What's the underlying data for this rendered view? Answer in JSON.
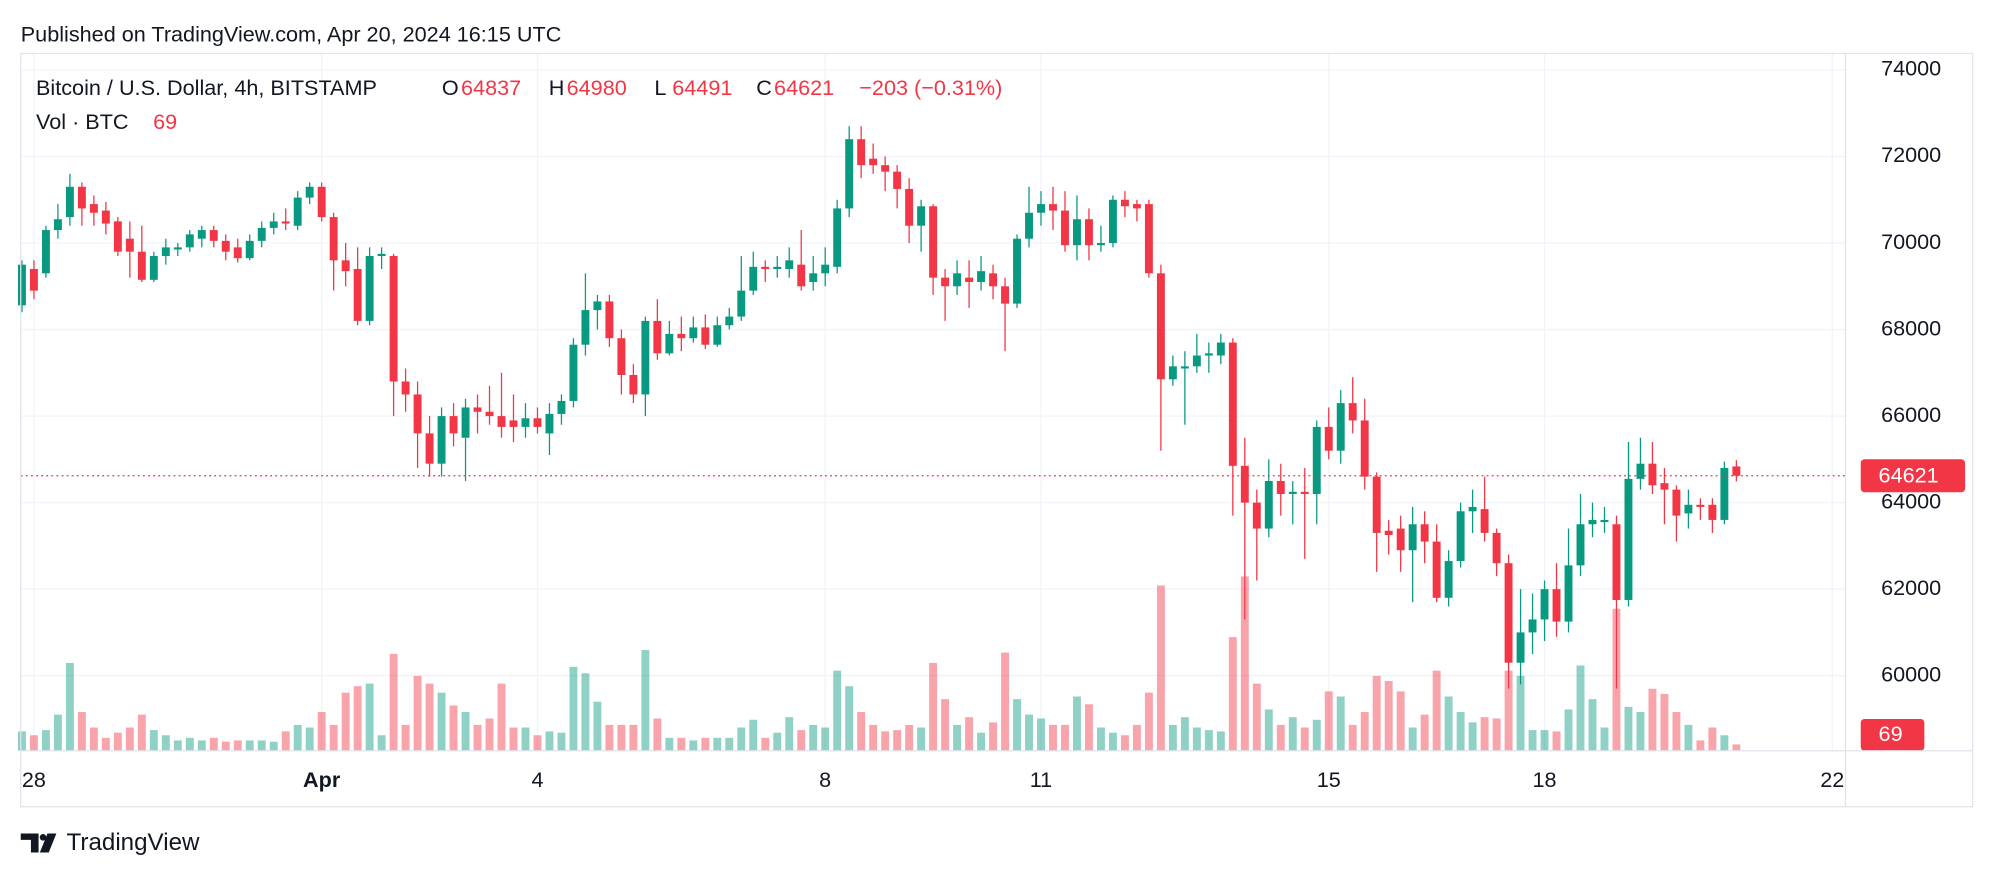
{
  "header": "Published on TradingView.com, Apr 20, 2024 16:15 UTC",
  "footer": "TradingView",
  "chart_data": {
    "type": "candlestick",
    "title": "Bitcoin / U.S. Dollar, 4h, BITSTAMP",
    "ohlc_labels": [
      "O",
      "H",
      "L",
      "C"
    ],
    "change": "−203 (−0.31%)",
    "volume_label": "Vol · BTC",
    "up_color": "#089981",
    "down_color": "#f23645",
    "grid": true,
    "xlim": [
      -0.1,
      152.1
    ],
    "xticks": [
      {
        "value": 1,
        "label": "28"
      },
      {
        "value": 25,
        "label": "Apr"
      },
      {
        "value": 43,
        "label": "4"
      },
      {
        "value": 67,
        "label": "8"
      },
      {
        "value": 85,
        "label": "11"
      },
      {
        "value": 109,
        "label": "15"
      },
      {
        "value": 127,
        "label": "18"
      },
      {
        "value": 151,
        "label": "22"
      }
    ],
    "ylim": [
      58265,
      74382
    ],
    "yticks": [
      60000,
      62000,
      64000,
      66000,
      68000,
      70000,
      72000,
      74000
    ],
    "open": [
      68560,
      69400,
      69300,
      70300,
      70600,
      71300,
      70900,
      70750,
      70500,
      70100,
      69800,
      69150,
      69700,
      69850,
      69900,
      70100,
      70300,
      70050,
      69900,
      69650,
      70050,
      70350,
      70500,
      70400,
      71050,
      71300,
      70600,
      69600,
      69400,
      68200,
      69700,
      69700,
      66800,
      66500,
      65600,
      64900,
      66000,
      65500,
      66200,
      66100,
      66000,
      65900,
      65750,
      65950,
      65600,
      66050,
      66350,
      67650,
      68450,
      68650,
      67800,
      66950,
      66500,
      68200,
      67450,
      67900,
      67800,
      68050,
      67650,
      68100,
      68300,
      68900,
      69450,
      69400,
      69400,
      69500,
      69100,
      69300,
      69450,
      70800,
      72400,
      71950,
      71800,
      71650,
      71250,
      70400,
      70850,
      69200,
      69000,
      69200,
      69100,
      69300,
      69000,
      68600,
      70100,
      70700,
      70900,
      70750,
      69950,
      70550,
      69950,
      70000,
      71000,
      70900,
      70900,
      69300,
      66850,
      67100,
      67150,
      67400,
      67400,
      67700,
      64850,
      64000,
      63400,
      64500,
      64200,
      64250,
      64200,
      65750,
      65200,
      66300,
      65900,
      64600,
      63350,
      63400,
      62900,
      63500,
      63100,
      61800,
      62650,
      63800,
      63850,
      63300,
      62600,
      60300,
      61000,
      61300,
      62000,
      61250,
      62550,
      63500,
      63550,
      63500,
      61750,
      64550,
      64900,
      64450,
      64300,
      63750,
      63950,
      63950,
      63600,
      64837
    ],
    "high": [
      69600,
      69600,
      70400,
      70900,
      71600,
      71400,
      71100,
      70950,
      70600,
      70500,
      70400,
      69800,
      70100,
      70000,
      70300,
      70400,
      70400,
      70200,
      70100,
      70200,
      70500,
      70700,
      70800,
      71200,
      71400,
      71400,
      70700,
      70000,
      69900,
      69900,
      69900,
      69750,
      67100,
      66800,
      66000,
      66200,
      66300,
      66400,
      66500,
      66700,
      67000,
      66500,
      66300,
      66200,
      66300,
      66500,
      67800,
      69300,
      68800,
      68800,
      68000,
      67200,
      68300,
      68700,
      68200,
      68300,
      68300,
      68350,
      68300,
      68500,
      69700,
      69800,
      69600,
      69700,
      69900,
      70300,
      69700,
      69900,
      71000,
      72700,
      72700,
      72300,
      72000,
      71800,
      71500,
      71000,
      70900,
      69400,
      69600,
      69600,
      69700,
      69500,
      69200,
      70200,
      71300,
      71200,
      71300,
      71200,
      71100,
      70800,
      70400,
      71100,
      71200,
      71000,
      71000,
      69500,
      67400,
      67500,
      67900,
      67700,
      67900,
      67800,
      65500,
      64300,
      65000,
      64900,
      64500,
      64800,
      65900,
      66200,
      66600,
      66900,
      66400,
      64700,
      63600,
      63700,
      63900,
      63800,
      63500,
      62900,
      64000,
      64300,
      64600,
      63400,
      62800,
      62000,
      61900,
      62200,
      62600,
      63400,
      64200,
      64000,
      63900,
      63700,
      65400,
      65500,
      65400,
      64800,
      64400,
      64300,
      64100,
      64100,
      64950,
      64980
    ],
    "low": [
      68400,
      68700,
      69200,
      70100,
      70400,
      70400,
      70400,
      70200,
      69700,
      69200,
      69100,
      69100,
      69500,
      69700,
      69800,
      69900,
      69900,
      69600,
      69550,
      69600,
      69900,
      70200,
      70300,
      70300,
      70900,
      70500,
      68900,
      69000,
      68100,
      68100,
      69400,
      66000,
      66100,
      64800,
      64600,
      64600,
      65300,
      64500,
      65600,
      65800,
      65500,
      65400,
      65500,
      65600,
      65100,
      65800,
      66200,
      67400,
      68000,
      67600,
      66500,
      66300,
      66000,
      67300,
      67400,
      67500,
      67700,
      67550,
      67600,
      68000,
      68200,
      68800,
      69100,
      69200,
      69200,
      68900,
      68900,
      69000,
      69300,
      70600,
      71500,
      71600,
      71200,
      70800,
      70000,
      69800,
      68800,
      68200,
      68800,
      68500,
      68900,
      68700,
      67500,
      68500,
      69900,
      70400,
      70300,
      69800,
      69600,
      69600,
      69800,
      69900,
      70600,
      70500,
      69200,
      65200,
      66700,
      65800,
      67000,
      67000,
      67200,
      63700,
      61300,
      62200,
      63200,
      63700,
      63500,
      62700,
      63500,
      65000,
      64900,
      65600,
      64300,
      62400,
      62800,
      62400,
      61700,
      62600,
      61700,
      61600,
      62500,
      63300,
      63100,
      62300,
      59700,
      59800,
      60500,
      60800,
      60900,
      61000,
      62300,
      63200,
      63300,
      59700,
      61600,
      64300,
      64200,
      63500,
      63100,
      63400,
      63600,
      63300,
      63500,
      64491
    ],
    "close": [
      69500,
      68900,
      70300,
      70550,
      71300,
      70800,
      70700,
      70450,
      69800,
      69800,
      69150,
      69700,
      69900,
      69900,
      70200,
      70300,
      70050,
      69800,
      69650,
      70050,
      70350,
      70500,
      70450,
      71050,
      71300,
      70600,
      69600,
      69350,
      68200,
      69700,
      69750,
      66800,
      66500,
      65600,
      64900,
      66000,
      65600,
      66200,
      66100,
      66000,
      65750,
      65750,
      65950,
      65750,
      66050,
      66350,
      67650,
      68450,
      68650,
      67800,
      66950,
      66500,
      68200,
      67450,
      67900,
      67800,
      68050,
      67650,
      68100,
      68300,
      68900,
      69450,
      69400,
      69450,
      69600,
      69000,
      69300,
      69500,
      70800,
      72400,
      71800,
      71800,
      71650,
      71250,
      70400,
      70850,
      69200,
      69000,
      69300,
      69100,
      69350,
      69000,
      68600,
      70100,
      70700,
      70900,
      70750,
      69950,
      70550,
      69950,
      70000,
      71000,
      70850,
      70800,
      69300,
      66850,
      67150,
      67150,
      67400,
      67450,
      67700,
      64850,
      64000,
      63400,
      64500,
      64200,
      64250,
      64200,
      65750,
      65200,
      66300,
      65900,
      64600,
      63300,
      63250,
      62900,
      63500,
      63100,
      61800,
      62650,
      63800,
      63900,
      63300,
      62600,
      60300,
      61000,
      61300,
      62000,
      61250,
      62550,
      63500,
      63600,
      63600,
      61750,
      64550,
      64900,
      64400,
      64300,
      63700,
      63950,
      63900,
      63600,
      64800,
      64621
    ],
    "volume": [
      210,
      168,
      224,
      392,
      952,
      420,
      252,
      140,
      196,
      252,
      392,
      224,
      168,
      112,
      140,
      112,
      140,
      98,
      112,
      112,
      112,
      98,
      210,
      280,
      252,
      420,
      280,
      630,
      700,
      728,
      168,
      1050,
      280,
      812,
      728,
      630,
      490,
      420,
      280,
      350,
      728,
      252,
      252,
      168,
      210,
      196,
      910,
      840,
      532,
      280,
      280,
      280,
      1092,
      350,
      140,
      140,
      112,
      140,
      140,
      140,
      252,
      336,
      140,
      196,
      364,
      224,
      280,
      252,
      868,
      700,
      420,
      280,
      210,
      224,
      280,
      252,
      952,
      560,
      280,
      364,
      196,
      308,
      1064,
      560,
      392,
      350,
      280,
      280,
      588,
      504,
      252,
      196,
      168,
      280,
      630,
      1792,
      280,
      364,
      252,
      224,
      210,
      1232,
      1890,
      728,
      448,
      280,
      364,
      252,
      336,
      644,
      588,
      280,
      420,
      812,
      756,
      644,
      252,
      392,
      868,
      588,
      420,
      308,
      364,
      350,
      868,
      812,
      224,
      224,
      210,
      448,
      924,
      560,
      252,
      1540,
      476,
      420,
      672,
      616,
      420,
      280,
      112,
      252,
      168,
      69
    ]
  }
}
